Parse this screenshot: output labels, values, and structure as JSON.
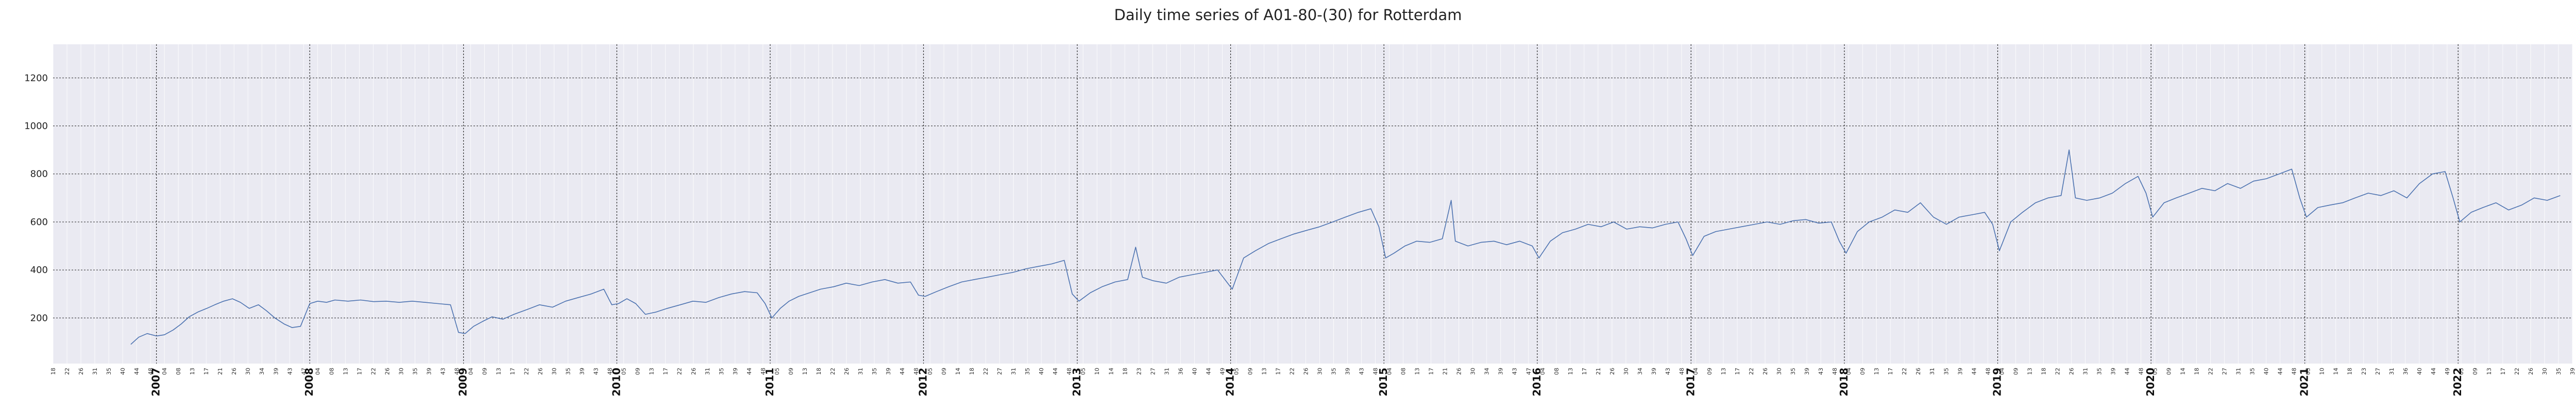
{
  "chart_data": {
    "type": "line",
    "title": "Daily time series of A01-80-(30) for Rotterdam",
    "xlabel": "",
    "ylabel": "",
    "x_range": [
      "2006-04-30",
      "2022-09-30"
    ],
    "ylim": [
      10,
      1340
    ],
    "yticks": [
      200,
      400,
      600,
      800,
      1000,
      1200
    ],
    "year_ticks": [
      "2007",
      "2008",
      "2009",
      "2010",
      "2011",
      "2012",
      "2013",
      "2014",
      "2015",
      "2016",
      "2017",
      "2018",
      "2019",
      "2020",
      "2021",
      "2022"
    ],
    "week_tick_labels": [
      "18",
      "22",
      "26",
      "31",
      "35",
      "40",
      "44",
      "48",
      "04",
      "08",
      "13",
      "17",
      "21",
      "26",
      "30",
      "34",
      "39",
      "43",
      "47",
      "04",
      "08",
      "13",
      "17",
      "22",
      "26",
      "30",
      "35",
      "39",
      "43",
      "48",
      "04",
      "09",
      "13",
      "17",
      "22",
      "26",
      "30",
      "35",
      "39",
      "43",
      "48",
      "05",
      "09",
      "13",
      "17",
      "22",
      "26",
      "31",
      "35",
      "39",
      "44",
      "48",
      "05",
      "09",
      "13",
      "18",
      "22",
      "26",
      "31",
      "35",
      "39",
      "44",
      "48",
      "05",
      "09",
      "14",
      "18",
      "22",
      "27",
      "31",
      "35",
      "40",
      "44",
      "48",
      "05",
      "10",
      "14",
      "18",
      "23",
      "27",
      "31",
      "36",
      "40",
      "44",
      "49",
      "05",
      "09",
      "13",
      "17",
      "22",
      "26",
      "30",
      "35",
      "39",
      "43",
      "48",
      "04",
      "08",
      "13",
      "17",
      "21",
      "26",
      "30",
      "34",
      "39",
      "43",
      "47",
      "04",
      "08",
      "13",
      "17",
      "21",
      "26",
      "30",
      "34",
      "39",
      "43",
      "48",
      "04",
      "09",
      "13",
      "17",
      "22",
      "26",
      "30",
      "35",
      "39",
      "43",
      "48",
      "04",
      "09",
      "13",
      "17",
      "22",
      "26",
      "31",
      "35",
      "39",
      "44",
      "48",
      "04",
      "09",
      "13",
      "18",
      "22",
      "26",
      "31",
      "35",
      "39",
      "44",
      "48",
      "05",
      "09",
      "14",
      "18",
      "22",
      "27",
      "31",
      "35",
      "40",
      "44",
      "48",
      "05",
      "10",
      "14",
      "18",
      "23",
      "27",
      "31",
      "36",
      "40",
      "44",
      "49",
      "05",
      "09",
      "13",
      "17",
      "22",
      "26",
      "30",
      "35",
      "39"
    ],
    "grid": true,
    "series": [
      {
        "name": "",
        "color": "#4c72b0",
        "points": [
          [
            "2006-11-01",
            90
          ],
          [
            "2006-11-20",
            120
          ],
          [
            "2006-12-10",
            135
          ],
          [
            "2007-01-01",
            125
          ],
          [
            "2007-01-20",
            130
          ],
          [
            "2007-02-10",
            150
          ],
          [
            "2007-03-01",
            175
          ],
          [
            "2007-03-20",
            205
          ],
          [
            "2007-04-10",
            225
          ],
          [
            "2007-05-01",
            240
          ],
          [
            "2007-05-20",
            255
          ],
          [
            "2007-06-10",
            270
          ],
          [
            "2007-07-01",
            280
          ],
          [
            "2007-07-20",
            265
          ],
          [
            "2007-08-10",
            240
          ],
          [
            "2007-09-01",
            255
          ],
          [
            "2007-09-20",
            230
          ],
          [
            "2007-10-10",
            200
          ],
          [
            "2007-11-01",
            175
          ],
          [
            "2007-11-20",
            160
          ],
          [
            "2007-12-10",
            165
          ],
          [
            "2008-01-01",
            260
          ],
          [
            "2008-01-20",
            270
          ],
          [
            "2008-02-10",
            265
          ],
          [
            "2008-03-01",
            275
          ],
          [
            "2008-04-01",
            270
          ],
          [
            "2008-05-01",
            275
          ],
          [
            "2008-06-01",
            268
          ],
          [
            "2008-07-01",
            270
          ],
          [
            "2008-08-01",
            265
          ],
          [
            "2008-09-01",
            270
          ],
          [
            "2008-10-01",
            265
          ],
          [
            "2008-11-01",
            260
          ],
          [
            "2008-12-01",
            255
          ],
          [
            "2008-12-20",
            140
          ],
          [
            "2009-01-05",
            135
          ],
          [
            "2009-01-25",
            165
          ],
          [
            "2009-02-15",
            185
          ],
          [
            "2009-03-10",
            205
          ],
          [
            "2009-04-05",
            195
          ],
          [
            "2009-05-01",
            215
          ],
          [
            "2009-06-01",
            235
          ],
          [
            "2009-07-01",
            255
          ],
          [
            "2009-08-01",
            245
          ],
          [
            "2009-09-01",
            270
          ],
          [
            "2009-10-01",
            285
          ],
          [
            "2009-11-01",
            300
          ],
          [
            "2009-12-01",
            320
          ],
          [
            "2009-12-20",
            255
          ],
          [
            "2010-01-05",
            260
          ],
          [
            "2010-01-25",
            280
          ],
          [
            "2010-02-15",
            260
          ],
          [
            "2010-03-10",
            215
          ],
          [
            "2010-04-05",
            225
          ],
          [
            "2010-05-01",
            240
          ],
          [
            "2010-06-01",
            255
          ],
          [
            "2010-07-01",
            270
          ],
          [
            "2010-08-01",
            265
          ],
          [
            "2010-09-01",
            285
          ],
          [
            "2010-10-01",
            300
          ],
          [
            "2010-11-01",
            310
          ],
          [
            "2010-12-01",
            305
          ],
          [
            "2010-12-20",
            260
          ],
          [
            "2011-01-05",
            200
          ],
          [
            "2011-01-25",
            240
          ],
          [
            "2011-02-15",
            270
          ],
          [
            "2011-03-10",
            290
          ],
          [
            "2011-04-05",
            305
          ],
          [
            "2011-05-01",
            320
          ],
          [
            "2011-06-01",
            330
          ],
          [
            "2011-07-01",
            345
          ],
          [
            "2011-08-01",
            335
          ],
          [
            "2011-09-01",
            350
          ],
          [
            "2011-10-01",
            360
          ],
          [
            "2011-11-01",
            345
          ],
          [
            "2011-12-01",
            350
          ],
          [
            "2011-12-20",
            295
          ],
          [
            "2012-01-05",
            290
          ],
          [
            "2012-02-01",
            310
          ],
          [
            "2012-03-01",
            330
          ],
          [
            "2012-04-01",
            350
          ],
          [
            "2012-05-01",
            360
          ],
          [
            "2012-06-01",
            370
          ],
          [
            "2012-07-01",
            380
          ],
          [
            "2012-08-01",
            390
          ],
          [
            "2012-09-01",
            405
          ],
          [
            "2012-10-01",
            415
          ],
          [
            "2012-11-01",
            425
          ],
          [
            "2012-12-01",
            440
          ],
          [
            "2012-12-20",
            300
          ],
          [
            "2013-01-05",
            270
          ],
          [
            "2013-02-01",
            305
          ],
          [
            "2013-03-01",
            330
          ],
          [
            "2013-04-01",
            350
          ],
          [
            "2013-05-01",
            360
          ],
          [
            "2013-05-20",
            495
          ],
          [
            "2013-06-05",
            370
          ],
          [
            "2013-07-01",
            355
          ],
          [
            "2013-08-01",
            345
          ],
          [
            "2013-09-01",
            370
          ],
          [
            "2013-10-01",
            380
          ],
          [
            "2013-11-01",
            390
          ],
          [
            "2013-12-01",
            400
          ],
          [
            "2014-01-05",
            320
          ],
          [
            "2014-02-01",
            450
          ],
          [
            "2014-03-01",
            480
          ],
          [
            "2014-04-01",
            510
          ],
          [
            "2014-05-01",
            530
          ],
          [
            "2014-06-01",
            550
          ],
          [
            "2014-07-01",
            565
          ],
          [
            "2014-08-01",
            580
          ],
          [
            "2014-09-01",
            600
          ],
          [
            "2014-10-01",
            620
          ],
          [
            "2014-11-01",
            640
          ],
          [
            "2014-12-01",
            655
          ],
          [
            "2014-12-20",
            580
          ],
          [
            "2015-01-05",
            450
          ],
          [
            "2015-01-25",
            470
          ],
          [
            "2015-02-20",
            500
          ],
          [
            "2015-03-20",
            520
          ],
          [
            "2015-04-20",
            515
          ],
          [
            "2015-05-20",
            530
          ],
          [
            "2015-06-10",
            690
          ],
          [
            "2015-06-20",
            520
          ],
          [
            "2015-07-20",
            500
          ],
          [
            "2015-08-20",
            515
          ],
          [
            "2015-09-20",
            520
          ],
          [
            "2015-10-20",
            505
          ],
          [
            "2015-11-20",
            520
          ],
          [
            "2015-12-20",
            500
          ],
          [
            "2016-01-05",
            450
          ],
          [
            "2016-02-01",
            520
          ],
          [
            "2016-03-01",
            555
          ],
          [
            "2016-04-01",
            570
          ],
          [
            "2016-05-01",
            590
          ],
          [
            "2016-06-01",
            580
          ],
          [
            "2016-07-01",
            600
          ],
          [
            "2016-08-01",
            570
          ],
          [
            "2016-09-01",
            580
          ],
          [
            "2016-10-01",
            575
          ],
          [
            "2016-11-01",
            590
          ],
          [
            "2016-12-01",
            600
          ],
          [
            "2016-12-20",
            530
          ],
          [
            "2017-01-05",
            460
          ],
          [
            "2017-02-01",
            540
          ],
          [
            "2017-03-01",
            560
          ],
          [
            "2017-04-01",
            570
          ],
          [
            "2017-05-01",
            580
          ],
          [
            "2017-06-01",
            590
          ],
          [
            "2017-07-01",
            600
          ],
          [
            "2017-08-01",
            590
          ],
          [
            "2017-09-01",
            605
          ],
          [
            "2017-10-01",
            610
          ],
          [
            "2017-11-01",
            595
          ],
          [
            "2017-12-01",
            600
          ],
          [
            "2017-12-20",
            520
          ],
          [
            "2018-01-05",
            470
          ],
          [
            "2018-02-01",
            560
          ],
          [
            "2018-03-01",
            600
          ],
          [
            "2018-04-01",
            620
          ],
          [
            "2018-05-01",
            650
          ],
          [
            "2018-06-01",
            640
          ],
          [
            "2018-07-01",
            680
          ],
          [
            "2018-08-01",
            620
          ],
          [
            "2018-09-01",
            590
          ],
          [
            "2018-10-01",
            620
          ],
          [
            "2018-11-01",
            630
          ],
          [
            "2018-12-01",
            640
          ],
          [
            "2018-12-20",
            590
          ],
          [
            "2019-01-05",
            480
          ],
          [
            "2019-02-01",
            600
          ],
          [
            "2019-03-01",
            640
          ],
          [
            "2019-04-01",
            680
          ],
          [
            "2019-05-01",
            700
          ],
          [
            "2019-06-01",
            710
          ],
          [
            "2019-06-20",
            900
          ],
          [
            "2019-07-05",
            700
          ],
          [
            "2019-08-01",
            690
          ],
          [
            "2019-09-01",
            700
          ],
          [
            "2019-10-01",
            720
          ],
          [
            "2019-11-01",
            760
          ],
          [
            "2019-12-01",
            790
          ],
          [
            "2019-12-20",
            720
          ],
          [
            "2020-01-05",
            620
          ],
          [
            "2020-02-01",
            680
          ],
          [
            "2020-03-01",
            700
          ],
          [
            "2020-04-01",
            720
          ],
          [
            "2020-05-01",
            740
          ],
          [
            "2020-06-01",
            730
          ],
          [
            "2020-07-01",
            760
          ],
          [
            "2020-08-01",
            740
          ],
          [
            "2020-09-01",
            770
          ],
          [
            "2020-10-01",
            780
          ],
          [
            "2020-11-01",
            800
          ],
          [
            "2020-12-01",
            820
          ],
          [
            "2020-12-20",
            700
          ],
          [
            "2021-01-05",
            620
          ],
          [
            "2021-02-01",
            660
          ],
          [
            "2021-03-01",
            670
          ],
          [
            "2021-04-01",
            680
          ],
          [
            "2021-05-01",
            700
          ],
          [
            "2021-06-01",
            720
          ],
          [
            "2021-07-01",
            710
          ],
          [
            "2021-08-01",
            730
          ],
          [
            "2021-09-01",
            700
          ],
          [
            "2021-10-01",
            760
          ],
          [
            "2021-11-01",
            800
          ],
          [
            "2021-12-01",
            810
          ],
          [
            "2021-12-20",
            700
          ],
          [
            "2022-01-05",
            600
          ],
          [
            "2022-02-01",
            640
          ],
          [
            "2022-03-01",
            660
          ],
          [
            "2022-04-01",
            680
          ],
          [
            "2022-05-01",
            650
          ],
          [
            "2022-06-01",
            670
          ],
          [
            "2022-07-01",
            700
          ],
          [
            "2022-08-01",
            690
          ],
          [
            "2022-09-01",
            710
          ]
        ]
      }
    ]
  }
}
